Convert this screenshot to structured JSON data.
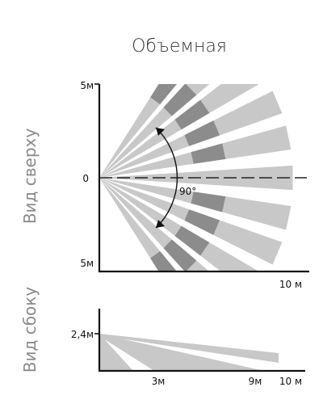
{
  "title": "Объемная",
  "top_view": {
    "label": "Вид сверху",
    "y_top": "5м",
    "y_zero": "0",
    "y_bottom": "5м",
    "x_end": "10 м",
    "angle": "90°"
  },
  "side_view": {
    "label": "Вид сбоку",
    "height": "2,4м",
    "x_3": "3м",
    "x_9": "9м",
    "x_end": "10 м"
  },
  "colors": {
    "beam_light": "#c8c8c8",
    "beam_dark": "#8c8c8c",
    "axis": "#111111",
    "text": "#333333",
    "side_label": "#8a8a8a"
  }
}
